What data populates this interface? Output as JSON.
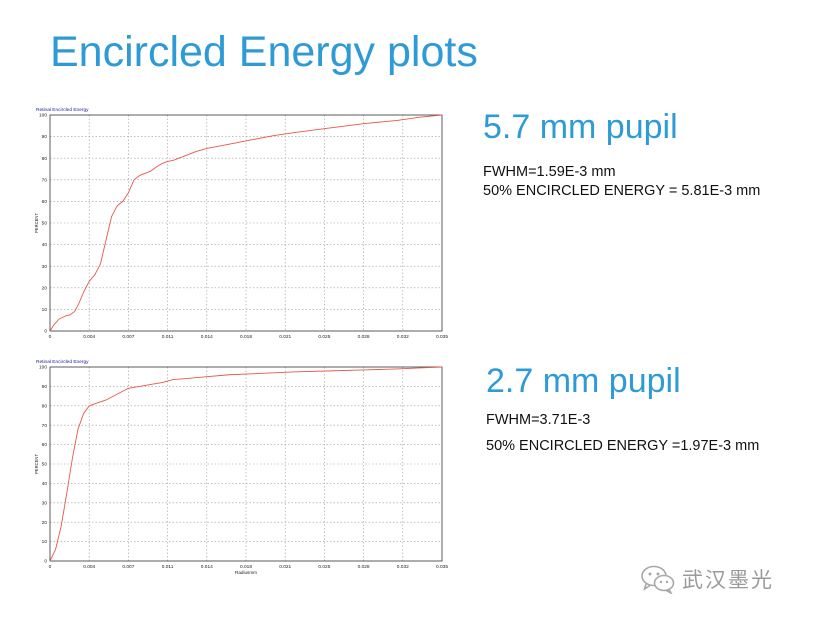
{
  "title": "Encircled Energy plots",
  "colors": {
    "accent": "#2e9bd6",
    "curve": "#e35a4a",
    "chart_label": "#1a1aa0"
  },
  "panels": [
    {
      "heading": "5.7 mm pupil",
      "stats": [
        "FWHM=1.59E-3 mm",
        "50% ENCIRCLED ENERGY = 5.81E-3 mm"
      ]
    },
    {
      "heading": "2.7 mm pupil",
      "stats": [
        "FWHM=3.71E-3",
        "50% ENCIRCLED ENERGY =1.97E-3 mm"
      ]
    }
  ],
  "watermark": {
    "icon": "wechat-icon",
    "text": "武汉墨光"
  },
  "chart_data": [
    {
      "type": "line",
      "title": "Retinal Encircled Energy",
      "xlabel": "",
      "ylabel": "PERCENT",
      "xlim": [
        0,
        0.035
      ],
      "ylim": [
        0,
        100
      ],
      "grid": true,
      "x_tick_labels": [
        "0",
        "0.004",
        "0.007",
        "0.011",
        "0.014",
        "0.018",
        "0.021",
        "0.025",
        "0.028",
        "0.032",
        "0.035"
      ],
      "y_tick_labels": [
        "0",
        "10",
        "20",
        "30",
        "40",
        "50",
        "60",
        "70",
        "80",
        "90",
        "100"
      ],
      "series": [
        {
          "x": [
            0,
            0.0003,
            0.0008,
            0.0014,
            0.0018,
            0.0022,
            0.0026,
            0.003,
            0.0035,
            0.004,
            0.0045,
            0.005,
            0.0055,
            0.006,
            0.0065,
            0.007,
            0.0075,
            0.008,
            0.0085,
            0.009,
            0.0095,
            0.01,
            0.0105,
            0.011,
            0.0115,
            0.012,
            0.013,
            0.014,
            0.016,
            0.018,
            0.02,
            0.022,
            0.025,
            0.028,
            0.031,
            0.033,
            0.035
          ],
          "y": [
            0,
            2.5,
            5.5,
            7,
            7.5,
            9,
            13,
            18,
            23,
            26,
            31,
            42,
            53,
            58,
            60,
            64,
            70,
            72,
            73,
            74,
            76,
            77.5,
            78.5,
            79,
            80,
            81,
            83,
            84.5,
            86.5,
            88.5,
            90.5,
            92,
            94,
            96,
            97.5,
            99,
            100
          ]
        }
      ]
    },
    {
      "type": "line",
      "title": "Retinal Encircled Energy",
      "xlabel": "Radiusmm",
      "ylabel": "PERCENT",
      "xlim": [
        0,
        0.035
      ],
      "ylim": [
        0,
        100
      ],
      "grid": true,
      "x_tick_labels": [
        "0",
        "0.004",
        "0.007",
        "0.011",
        "0.014",
        "0.018",
        "0.021",
        "0.025",
        "0.028",
        "0.032",
        "0.035"
      ],
      "y_tick_labels": [
        "0",
        "10",
        "20",
        "30",
        "40",
        "50",
        "60",
        "70",
        "80",
        "90",
        "100"
      ],
      "series": [
        {
          "x": [
            0,
            0.0005,
            0.001,
            0.0015,
            0.002,
            0.0025,
            0.003,
            0.0035,
            0.004,
            0.005,
            0.006,
            0.007,
            0.008,
            0.009,
            0.01,
            0.011,
            0.012,
            0.013,
            0.014,
            0.016,
            0.018,
            0.02,
            0.022,
            0.025,
            0.028,
            0.031,
            0.033,
            0.035
          ],
          "y": [
            0,
            6,
            18,
            35,
            53,
            68,
            76,
            80,
            81,
            83,
            86,
            89,
            90,
            91,
            92,
            93.5,
            94,
            94.5,
            95,
            96,
            96.5,
            97,
            97.5,
            98,
            98.5,
            99,
            99.5,
            100
          ]
        }
      ]
    }
  ]
}
